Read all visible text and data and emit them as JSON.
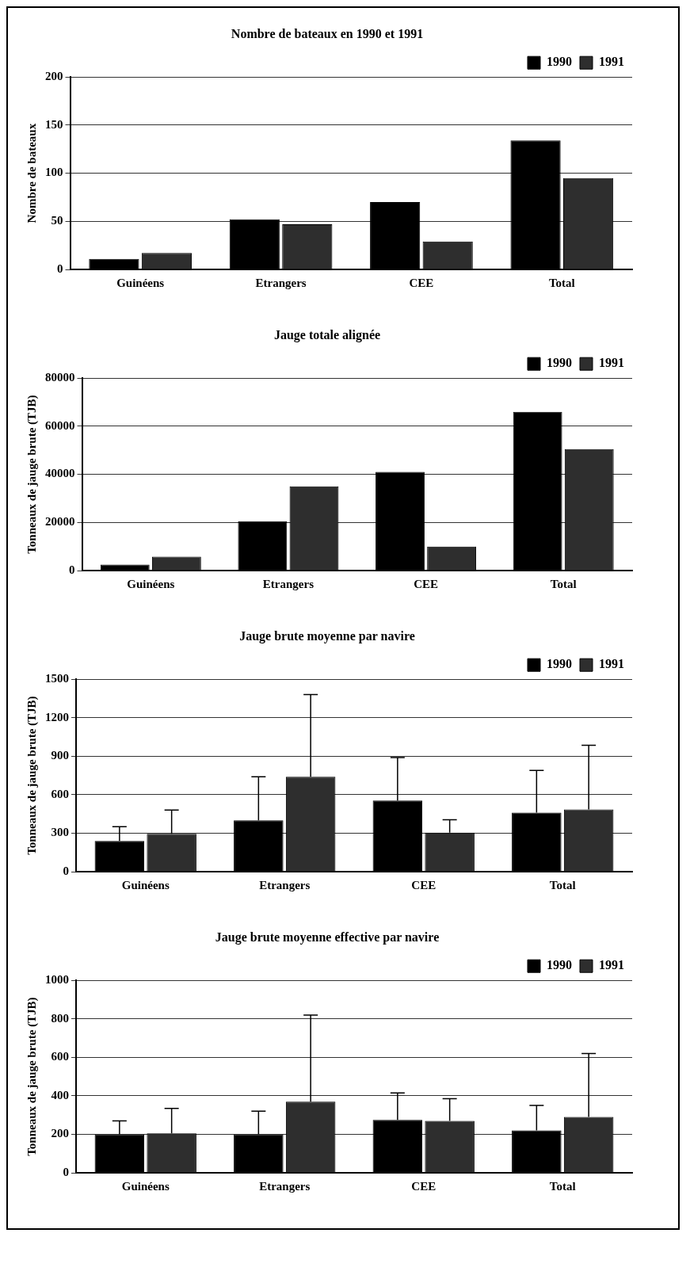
{
  "chart_data": [
    {
      "type": "bar",
      "title": "Nombre de bateaux en 1990 et 1991",
      "ylabel": "Nombre de bateaux",
      "categories": [
        "Guinéens",
        "Etrangers",
        "CEE",
        "Total"
      ],
      "series": [
        {
          "name": "1990",
          "color": "#000000",
          "values": [
            11,
            52,
            70,
            134
          ]
        },
        {
          "name": "1991",
          "color": "#2e2e2e",
          "values": [
            17,
            47,
            29,
            95
          ]
        }
      ],
      "ylim": [
        0,
        200
      ],
      "yticks": [
        0,
        50,
        100,
        150,
        200
      ],
      "grid": "y",
      "legend": "top right"
    },
    {
      "type": "bar",
      "title": "Jauge totale alignée",
      "ylabel": "Tonneaux de jauge brute (TJB)",
      "categories": [
        "Guinéens",
        "Etrangers",
        "CEE",
        "Total"
      ],
      "series": [
        {
          "name": "1990",
          "color": "#000000",
          "values": [
            2500,
            20500,
            41000,
            66000
          ]
        },
        {
          "name": "1991",
          "color": "#2e2e2e",
          "values": [
            5800,
            35000,
            10000,
            50500
          ]
        }
      ],
      "ylim": [
        0,
        80000
      ],
      "yticks": [
        0,
        20000,
        40000,
        60000,
        80000
      ],
      "grid": "y",
      "legend": "top right"
    },
    {
      "type": "bar",
      "title": "Jauge brute moyenne par navire",
      "ylabel": "Tonneaux de jauge brute (TJB)",
      "categories": [
        "Guinéens",
        "Etrangers",
        "CEE",
        "Total"
      ],
      "series": [
        {
          "name": "1990",
          "color": "#000000",
          "values": [
            240,
            400,
            555,
            460
          ],
          "errors": [
            [
              240,
              350
            ],
            [
              400,
              740
            ],
            [
              555,
              890
            ],
            [
              460,
              790
            ]
          ]
        },
        {
          "name": "1991",
          "color": "#2e2e2e",
          "values": [
            295,
            740,
            305,
            485
          ],
          "errors": [
            [
              295,
              480
            ],
            [
              740,
              1380
            ],
            [
              305,
              405
            ],
            [
              485,
              985
            ]
          ]
        }
      ],
      "ylim": [
        0,
        1500
      ],
      "yticks": [
        0,
        300,
        600,
        900,
        1200,
        1500
      ],
      "grid": "y",
      "legend": "top right"
    },
    {
      "type": "bar",
      "title": "Jauge brute moyenne effective par navire",
      "ylabel": "Tonneaux de jauge brute (TJB)",
      "categories": [
        "Guinéens",
        "Etrangers",
        "CEE",
        "Total"
      ],
      "series": [
        {
          "name": "1990",
          "color": "#000000",
          "values": [
            200,
            200,
            275,
            220
          ],
          "errors": [
            [
              200,
              270
            ],
            [
              200,
              320
            ],
            [
              275,
              415
            ],
            [
              220,
              350
            ]
          ]
        },
        {
          "name": "1991",
          "color": "#2e2e2e",
          "values": [
            205,
            370,
            270,
            290
          ],
          "errors": [
            [
              205,
              335
            ],
            [
              370,
              820
            ],
            [
              270,
              385
            ],
            [
              290,
              620
            ]
          ]
        }
      ],
      "ylim": [
        0,
        1000
      ],
      "yticks": [
        0,
        200,
        400,
        600,
        800,
        1000
      ],
      "grid": "y",
      "legend": "top right"
    }
  ]
}
